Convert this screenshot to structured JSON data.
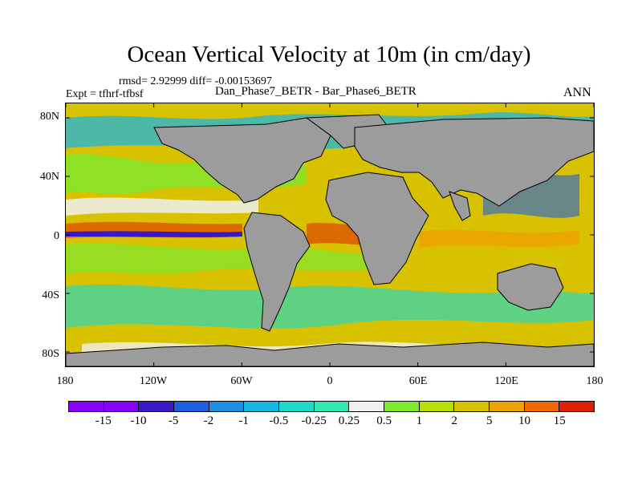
{
  "title": "Ocean Vertical Velocity at 10m (in cm/day)",
  "stats": "rmsd= 2.92999 diff= -0.00153697",
  "expt": "Expt = tfhrf-tfbsf",
  "subtitle": "Dan_Phase7_BETR - Bar_Phase6_BETR",
  "season": "ANN",
  "y_ticks": [
    "80N",
    "40N",
    "0",
    "40S",
    "80S"
  ],
  "x_ticks": [
    "180",
    "120W",
    "60W",
    "0",
    "60E",
    "120E",
    "180"
  ],
  "colorbar_labels": [
    "-15",
    "-10",
    "-5",
    "-2",
    "-1",
    "-0.5",
    "-0.25",
    "0.25",
    "0.5",
    "1",
    "2",
    "5",
    "10",
    "15"
  ],
  "colorbar_colors": [
    "#8a00ff",
    "#3a18c8",
    "#1f5ee0",
    "#1c8fe0",
    "#18b6e6",
    "#1ed8c8",
    "#30e8b0",
    "#f0f0f0",
    "#7ee830",
    "#b8e000",
    "#d8c000",
    "#f0a000",
    "#f06800",
    "#e02000"
  ],
  "map_colors": {
    "land": "#9c9c9c",
    "background": "#dcc000",
    "coast": "#000000"
  }
}
